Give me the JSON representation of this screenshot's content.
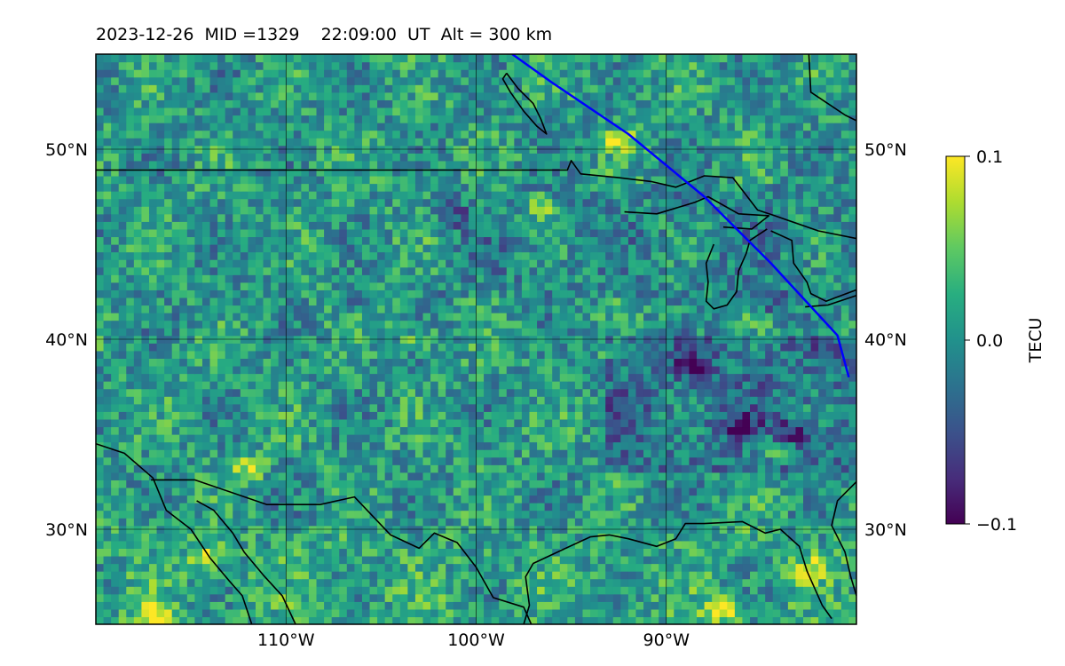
{
  "title": "2023-12-26  MID =1329    22:09:00  UT  Alt = 300 km",
  "chart_data": {
    "type": "heatmap",
    "title": "2023-12-26  MID =1329    22:09:00  UT  Alt = 300 km",
    "lon_range": [
      -120,
      -80
    ],
    "lat_range": [
      25,
      55
    ],
    "x_ticks": [
      {
        "value": -110,
        "label": "110°W"
      },
      {
        "value": -100,
        "label": "100°W"
      },
      {
        "value": -90,
        "label": "90°W"
      }
    ],
    "y_ticks": [
      {
        "value": 30,
        "label": "30°N"
      },
      {
        "value": 40,
        "label": "40°N"
      },
      {
        "value": 50,
        "label": "50°N"
      }
    ],
    "grid": true,
    "colormap": "viridis",
    "colorbar": {
      "label": "TECU",
      "vmin": -0.1,
      "vmax": 0.1,
      "ticks": [
        {
          "value": 0.1,
          "label": "0.1"
        },
        {
          "value": 0.0,
          "label": "0.0"
        },
        {
          "value": -0.1,
          "label": "−0.1"
        }
      ]
    },
    "track": {
      "color": "#0000ff",
      "points": [
        [
          -98.1,
          55.0
        ],
        [
          -96.0,
          53.5
        ],
        [
          -92.0,
          50.8
        ],
        [
          -88.0,
          47.5
        ],
        [
          -84.5,
          44.0
        ],
        [
          -81.0,
          40.2
        ],
        [
          -80.4,
          38.0
        ]
      ]
    },
    "field_features": [
      {
        "lon": -88.5,
        "lat": 38.6,
        "value": -0.09
      },
      {
        "lon": -86.0,
        "lat": 35.3,
        "value": -0.08
      },
      {
        "lon": -83.5,
        "lat": 35.0,
        "value": -0.08
      },
      {
        "lon": -84.5,
        "lat": 42.0,
        "value": -0.06
      },
      {
        "lon": -101.0,
        "lat": 46.5,
        "value": -0.05
      },
      {
        "lon": -106.0,
        "lat": 42.0,
        "value": -0.04
      },
      {
        "lon": -84.5,
        "lat": 34.3,
        "value": 0.09
      },
      {
        "lon": -87.0,
        "lat": 25.8,
        "value": 0.09
      },
      {
        "lon": -117.0,
        "lat": 25.4,
        "value": 0.09
      },
      {
        "lon": -114.0,
        "lat": 28.5,
        "value": 0.08
      },
      {
        "lon": -92.5,
        "lat": 50.5,
        "value": 0.08
      },
      {
        "lon": -96.5,
        "lat": 47.0,
        "value": 0.08
      },
      {
        "lon": -112.0,
        "lat": 33.2,
        "value": 0.07
      },
      {
        "lon": -82.5,
        "lat": 28.0,
        "value": 0.07
      },
      {
        "lon": -103.0,
        "lat": 40.0,
        "value": 0.05
      }
    ],
    "coastlines": [
      [
        [
          -120,
          34.5
        ],
        [
          -118.5,
          34.0
        ],
        [
          -117.0,
          32.7
        ],
        [
          -116.3,
          31.0
        ],
        [
          -115.0,
          30.0
        ],
        [
          -114.0,
          28.5
        ],
        [
          -113.0,
          27.3
        ],
        [
          -112.3,
          26.5
        ],
        [
          -111.8,
          25.0
        ]
      ],
      [
        [
          -114.7,
          31.5
        ],
        [
          -113.8,
          31.0
        ],
        [
          -112.8,
          29.8
        ],
        [
          -112.2,
          28.8
        ],
        [
          -111.2,
          27.6
        ],
        [
          -110.2,
          26.5
        ],
        [
          -109.5,
          25.0
        ]
      ],
      [
        [
          -117.1,
          32.6
        ],
        [
          -114.8,
          32.6
        ],
        [
          -111.0,
          31.3
        ],
        [
          -108.2,
          31.3
        ],
        [
          -106.4,
          31.7
        ],
        [
          -104.5,
          29.7
        ],
        [
          -103.0,
          29.0
        ],
        [
          -102.2,
          29.8
        ],
        [
          -101.0,
          29.3
        ],
        [
          -100.0,
          28.0
        ],
        [
          -99.1,
          26.4
        ],
        [
          -97.5,
          25.9
        ],
        [
          -97.1,
          25.0
        ]
      ],
      [
        [
          -97.5,
          25.0
        ],
        [
          -97.2,
          26.0
        ],
        [
          -97.4,
          27.5
        ],
        [
          -97.0,
          28.2
        ],
        [
          -95.5,
          28.9
        ],
        [
          -94.0,
          29.6
        ],
        [
          -93.0,
          29.7
        ],
        [
          -92.0,
          29.5
        ],
        [
          -90.5,
          29.1
        ],
        [
          -89.5,
          29.5
        ],
        [
          -89.0,
          30.3
        ],
        [
          -88.0,
          30.3
        ],
        [
          -86.0,
          30.4
        ],
        [
          -84.8,
          29.8
        ],
        [
          -84.0,
          30.0
        ],
        [
          -83.0,
          29.1
        ],
        [
          -82.6,
          27.8
        ],
        [
          -81.8,
          26.0
        ],
        [
          -81.3,
          25.3
        ]
      ],
      [
        [
          -80.0,
          26.5
        ],
        [
          -80.3,
          27.5
        ],
        [
          -80.6,
          28.8
        ],
        [
          -81.3,
          30.2
        ],
        [
          -81.0,
          31.5
        ],
        [
          -80.0,
          32.5
        ]
      ],
      [
        [
          -120,
          48.9
        ],
        [
          -95.2,
          48.9
        ],
        [
          -95.0,
          49.4
        ],
        [
          -94.5,
          48.7
        ],
        [
          -92.5,
          48.5
        ],
        [
          -90.8,
          48.3
        ],
        [
          -89.5,
          48.0
        ],
        [
          -88.0,
          48.6
        ],
        [
          -86.5,
          48.5
        ],
        [
          -85.2,
          46.8
        ],
        [
          -84.3,
          46.5
        ],
        [
          -82.0,
          45.7
        ],
        [
          -80.0,
          45.3
        ]
      ],
      [
        [
          -92.2,
          46.7
        ],
        [
          -90.5,
          46.6
        ],
        [
          -88.5,
          47.2
        ],
        [
          -87.8,
          47.5
        ],
        [
          -86.2,
          46.6
        ],
        [
          -84.6,
          46.5
        ],
        [
          -85.5,
          45.8
        ],
        [
          -87.0,
          45.9
        ]
      ],
      [
        [
          -87.5,
          45.0
        ],
        [
          -87.9,
          44.0
        ],
        [
          -87.8,
          43.0
        ],
        [
          -87.9,
          42.0
        ],
        [
          -87.5,
          41.6
        ],
        [
          -86.8,
          41.8
        ],
        [
          -86.3,
          42.5
        ],
        [
          -86.2,
          43.6
        ],
        [
          -85.8,
          44.5
        ],
        [
          -85.6,
          45.2
        ],
        [
          -84.7,
          45.8
        ]
      ],
      [
        [
          -84.5,
          45.7
        ],
        [
          -83.4,
          45.2
        ],
        [
          -83.3,
          44.0
        ],
        [
          -82.6,
          43.0
        ],
        [
          -82.4,
          42.4
        ],
        [
          -81.6,
          42.0
        ],
        [
          -80.0,
          42.6
        ]
      ],
      [
        [
          -82.7,
          41.7
        ],
        [
          -81.5,
          41.8
        ],
        [
          -80.0,
          42.3
        ]
      ],
      [
        [
          -98.4,
          54.0
        ],
        [
          -97.8,
          53.2
        ],
        [
          -97.0,
          52.4
        ],
        [
          -96.6,
          51.6
        ],
        [
          -96.3,
          50.8
        ],
        [
          -96.8,
          51.2
        ],
        [
          -97.5,
          52.0
        ],
        [
          -98.2,
          53.0
        ],
        [
          -98.6,
          53.7
        ],
        [
          -98.4,
          54.0
        ]
      ],
      [
        [
          -82.5,
          55.0
        ],
        [
          -82.4,
          53.0
        ],
        [
          -80.6,
          51.8
        ],
        [
          -80.0,
          51.5
        ]
      ]
    ]
  }
}
